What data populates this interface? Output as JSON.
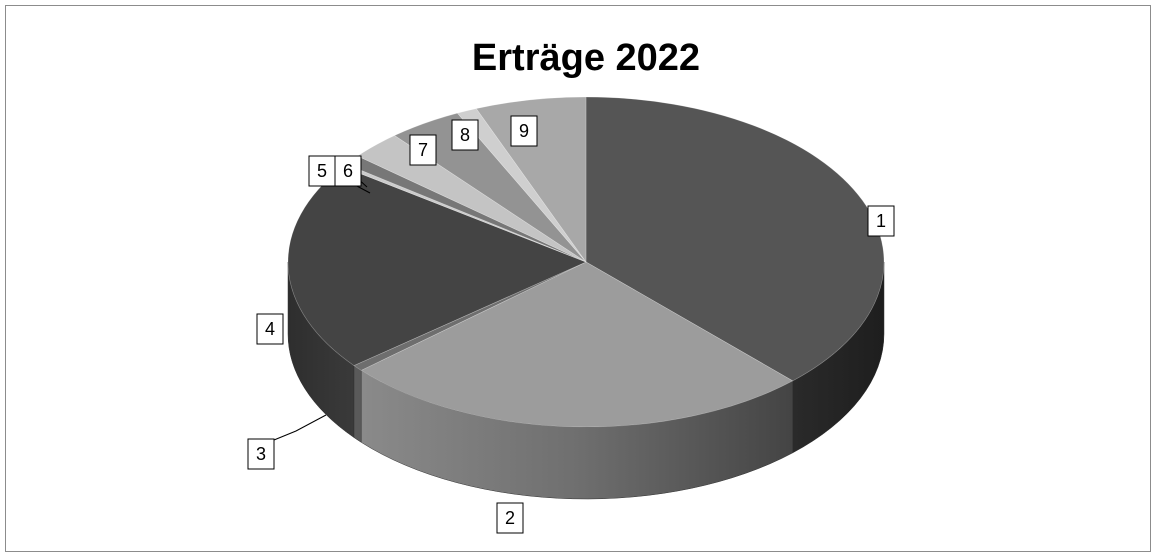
{
  "chart_data": {
    "type": "pie",
    "style": "3d",
    "title": "Erträge 2022",
    "legend": "none",
    "grid": false,
    "slices": [
      {
        "label": "1",
        "value": 37.8,
        "color": "#555555"
      },
      {
        "label": "2",
        "value": 25.8,
        "color": "#9c9c9c"
      },
      {
        "label": "3",
        "value": 0.6,
        "color": "#6e6e6e"
      },
      {
        "label": "4",
        "value": 20.6,
        "color": "#444444"
      },
      {
        "label": "5",
        "value": 0.3,
        "color": "#cccccc"
      },
      {
        "label": "6",
        "value": 1.0,
        "color": "#777777"
      },
      {
        "label": "7",
        "value": 2.8,
        "color": "#c4c4c4"
      },
      {
        "label": "8",
        "value": 4.0,
        "color": "#939393"
      },
      {
        "label": "9",
        "value": 1.1,
        "color": "#cfcfcf"
      },
      {
        "label": "",
        "value": 6.0,
        "color": "#a8a8a8"
      }
    ]
  }
}
